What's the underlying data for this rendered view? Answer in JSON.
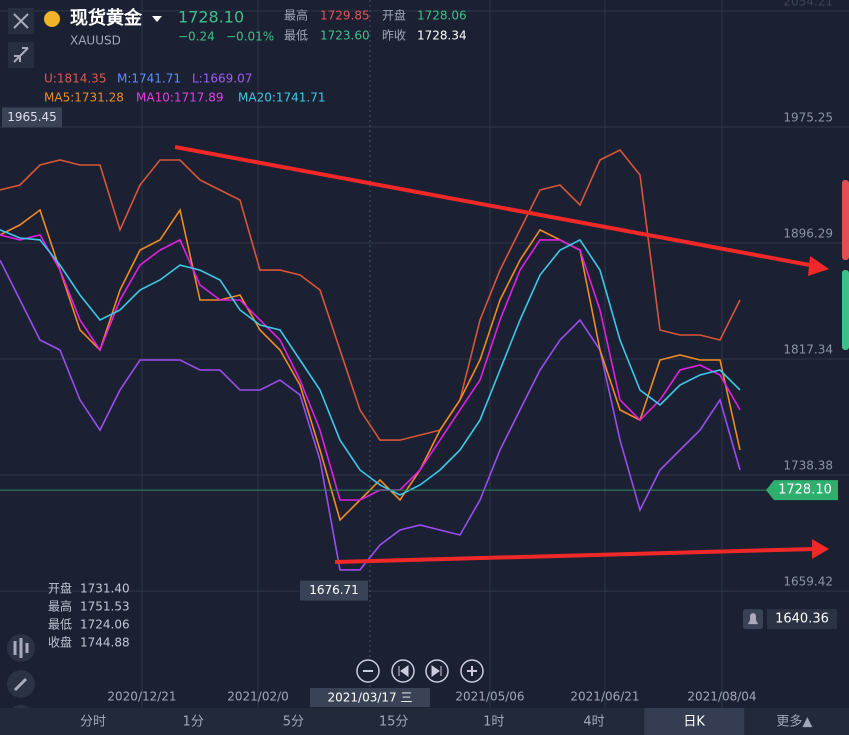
{
  "header": {
    "name": "现货黄金",
    "symbol": "XAUUSD",
    "price": "1728.10",
    "change": "−0.24",
    "change_pct": "−0.01%",
    "high_label": "最高",
    "high": "1729.85",
    "open_label": "开盘",
    "open": "1728.06",
    "low_label": "最低",
    "low": "1723.60",
    "prev_label": "昨收",
    "prev": "1728.34"
  },
  "legend": [
    {
      "text": "U:1814.35",
      "color": "#e0584a"
    },
    {
      "text": "M:1741.71",
      "color": "#5b8cff"
    },
    {
      "text": "L:1669.07",
      "color": "#a25cf2"
    },
    {
      "text": "MA5:1731.28",
      "color": "#f08a24"
    },
    {
      "text": "MA10:1717.89",
      "color": "#e040e0"
    },
    {
      "text": "MA20:1741.71",
      "color": "#40c8e8"
    }
  ],
  "ohlc": [
    [
      "开盘",
      "1731.40"
    ],
    [
      "最高",
      "1751.53"
    ],
    [
      "最低",
      "1724.06"
    ],
    [
      "收盘",
      "1744.88"
    ]
  ],
  "tabs": [
    "分时",
    "1分",
    "5分",
    "15分",
    "1时",
    "4时",
    "日K",
    "更多▲"
  ],
  "active_tab": 6,
  "chart_data": {
    "type": "line",
    "x": [
      0,
      5,
      10,
      15,
      20,
      25,
      30,
      35,
      40,
      45,
      50,
      55,
      60,
      65,
      70,
      75,
      80,
      85,
      90,
      95,
      100,
      105,
      110,
      115,
      120,
      125,
      130,
      135,
      140,
      145,
      150,
      155,
      160,
      165,
      170,
      175,
      180,
      185
    ],
    "xlim": [
      0,
      196
    ],
    "ylim": [
      1598.9,
      2061.69
    ],
    "yticks": [
      2054.21,
      1975.25,
      1896.29,
      1817.34,
      1738.38,
      1659.42
    ],
    "xticks": [
      {
        "value": 35.5,
        "label": "2020/12/21"
      },
      {
        "value": 64.5,
        "label": "2021/02/0"
      },
      {
        "value": 122.5,
        "label": "2021/05/06"
      },
      {
        "value": 151.25,
        "label": "2021/06/21"
      },
      {
        "value": 180.5,
        "label": "2021/08/04"
      }
    ],
    "crosshair": {
      "value": 92.5,
      "label": "2021/03/17 三"
    },
    "grid": true,
    "series": [
      {
        "color": "#d8553a",
        "values": [
          1932.4,
          1935.8,
          1949.4,
          1952.8,
          1949.4,
          1949.4,
          1905.2,
          1935.8,
          1952.8,
          1952.8,
          1939.2,
          1932.4,
          1925.6,
          1877.9,
          1877.9,
          1874.5,
          1864.3,
          1823.5,
          1782.7,
          1762.2,
          1762.2,
          1765.6,
          1769.0,
          1789.5,
          1843.9,
          1877.9,
          1905.2,
          1932.4,
          1935.8,
          1922.2,
          1952.8,
          1959.6,
          1942.6,
          1837.1,
          1833.7,
          1833.7,
          1830.3,
          1857.5
        ]
      },
      {
        "color": "#9a4cf0",
        "values": [
          1884.7,
          1857.5,
          1830.3,
          1823.5,
          1789.5,
          1769.0,
          1796.3,
          1816.7,
          1816.7,
          1816.7,
          1809.9,
          1809.9,
          1796.3,
          1796.3,
          1803.1,
          1792.9,
          1748.6,
          1673.8,
          1673.8,
          1690.8,
          1701.0,
          1704.4,
          1701.0,
          1697.6,
          1721.4,
          1755.4,
          1782.7,
          1809.9,
          1830.3,
          1843.9,
          1823.5,
          1762.2,
          1714.6,
          1741.8,
          1755.4,
          1769.0,
          1789.5,
          1741.8
        ]
      },
      {
        "color": "#f08a24",
        "values": [
          1901.8,
          1908.6,
          1918.8,
          1877.9,
          1837.1,
          1823.5,
          1864.3,
          1891.5,
          1898.4,
          1918.8,
          1857.5,
          1857.5,
          1860.9,
          1837.1,
          1823.5,
          1799.7,
          1755.4,
          1707.8,
          1721.4,
          1735.0,
          1721.4,
          1741.8,
          1769.0,
          1789.5,
          1816.7,
          1857.5,
          1884.7,
          1905.2,
          1898.4,
          1891.5,
          1823.5,
          1782.7,
          1775.8,
          1816.7,
          1820.1,
          1816.7,
          1816.7,
          1755.4
        ]
      },
      {
        "color": "#e020e0",
        "values": [
          1901.8,
          1898.4,
          1901.8,
          1877.9,
          1843.9,
          1823.5,
          1857.5,
          1881.3,
          1891.5,
          1898.4,
          1867.7,
          1857.5,
          1857.5,
          1843.9,
          1830.3,
          1803.1,
          1769.0,
          1721.4,
          1721.4,
          1728.2,
          1728.2,
          1741.8,
          1762.2,
          1782.7,
          1803.1,
          1843.9,
          1877.9,
          1898.4,
          1898.4,
          1891.5,
          1850.7,
          1789.5,
          1775.8,
          1789.5,
          1809.9,
          1813.3,
          1806.5,
          1782.7
        ]
      },
      {
        "color": "#3cc8e8",
        "values": [
          1905.2,
          1899.7,
          1898.4,
          1881.3,
          1860.9,
          1843.9,
          1850.7,
          1864.3,
          1871.1,
          1881.3,
          1877.9,
          1871.1,
          1850.7,
          1840.5,
          1837.1,
          1816.7,
          1796.3,
          1762.2,
          1741.8,
          1731.6,
          1724.8,
          1731.6,
          1741.8,
          1755.4,
          1775.8,
          1809.9,
          1843.9,
          1874.5,
          1891.5,
          1898.4,
          1877.9,
          1830.3,
          1796.3,
          1786.1,
          1799.7,
          1806.5,
          1809.9,
          1796.3
        ]
      }
    ],
    "high_mark": 1965.45,
    "low_mark": 1676.71,
    "last_price": {
      "value": 1728.1,
      "label": "1728.10"
    },
    "alert": 1640.36
  }
}
